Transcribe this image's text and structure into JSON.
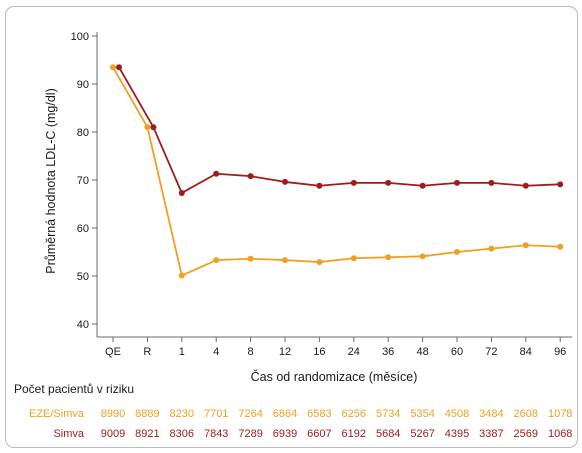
{
  "chart_data": {
    "type": "line",
    "ylabel": "Průměrná hodnota LDL-C (mg/dl)",
    "xlabel": "Čas od randomizace (měsíce)",
    "ylim": [
      40,
      100
    ],
    "yticks": [
      40,
      50,
      60,
      70,
      80,
      90,
      100
    ],
    "categories": [
      "QE",
      "R",
      "1",
      "4",
      "8",
      "12",
      "16",
      "24",
      "36",
      "48",
      "60",
      "72",
      "84",
      "96"
    ],
    "grid": false,
    "series": [
      {
        "name": "Simva",
        "color": "#a01c1c",
        "values": [
          93.5,
          81,
          67.3,
          71.3,
          70.8,
          69.6,
          68.8,
          69.4,
          69.4,
          68.8,
          69.4,
          69.4,
          68.8,
          69.1
        ]
      },
      {
        "name": "EZE/Simva",
        "color": "#f0a020",
        "values": [
          93.5,
          81,
          50.1,
          53.3,
          53.6,
          53.3,
          52.9,
          53.7,
          53.9,
          54.1,
          55.0,
          55.7,
          56.4,
          56.1
        ]
      }
    ],
    "risk_table": {
      "title": "Počet pacientů v riziku",
      "rows": [
        {
          "label": "EZE/Simva",
          "color": "#f0a020",
          "values": [
            "8990",
            "8889",
            "8230",
            "7701",
            "7264",
            "6864",
            "6583",
            "6256",
            "5734",
            "5354",
            "4508",
            "3484",
            "2608",
            "1078"
          ]
        },
        {
          "label": "Simva",
          "color": "#a01c1c",
          "values": [
            "9009",
            "8921",
            "8306",
            "7843",
            "7289",
            "6939",
            "6607",
            "6192",
            "5684",
            "5267",
            "4395",
            "3387",
            "2569",
            "1068"
          ]
        }
      ]
    }
  }
}
